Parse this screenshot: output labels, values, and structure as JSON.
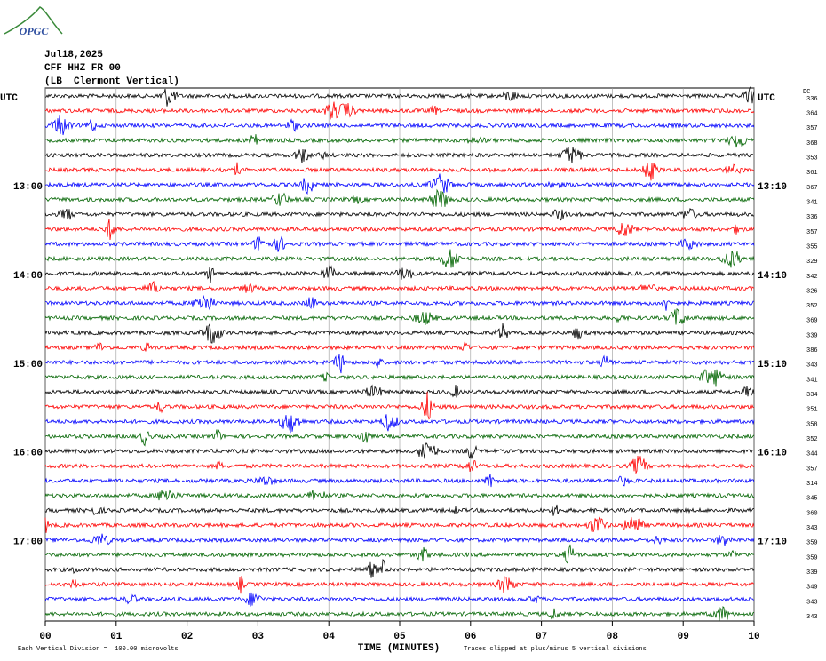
{
  "header": {
    "logo": "OPGC",
    "date": "Jul18,2025",
    "station": "CFF HHZ FR 00",
    "location": "(LB  Clermont Vertical)",
    "dc_heading": "DC"
  },
  "chart_data": {
    "type": "helicorder",
    "xlabel": "TIME (MINUTES)",
    "xlim": [
      0,
      10
    ],
    "xticks": [
      {
        "value": 0,
        "label": "00"
      },
      {
        "value": 1,
        "label": "01"
      },
      {
        "value": 2,
        "label": "02"
      },
      {
        "value": 3,
        "label": "03"
      },
      {
        "value": 4,
        "label": "04"
      },
      {
        "value": 5,
        "label": "05"
      },
      {
        "value": 6,
        "label": "06"
      },
      {
        "value": 7,
        "label": "07"
      },
      {
        "value": 8,
        "label": "08"
      },
      {
        "value": 9,
        "label": "09"
      },
      {
        "value": 10,
        "label": "10"
      }
    ],
    "grid": true,
    "colors": [
      "#000000",
      "#ff0000",
      "#0000ff",
      "#006400"
    ],
    "rows": [
      {
        "left": "UTC",
        "right": "UTC",
        "dc": 336
      },
      {
        "left": null,
        "right": null,
        "dc": 364
      },
      {
        "left": null,
        "right": null,
        "dc": 357
      },
      {
        "left": null,
        "right": null,
        "dc": 368
      },
      {
        "left": null,
        "right": null,
        "dc": 353
      },
      {
        "left": null,
        "right": null,
        "dc": 361
      },
      {
        "left": "13:00",
        "right": "13:10",
        "dc": 367
      },
      {
        "left": null,
        "right": null,
        "dc": 341
      },
      {
        "left": null,
        "right": null,
        "dc": 336
      },
      {
        "left": null,
        "right": null,
        "dc": 357
      },
      {
        "left": null,
        "right": null,
        "dc": 355
      },
      {
        "left": null,
        "right": null,
        "dc": 329
      },
      {
        "left": "14:00",
        "right": "14:10",
        "dc": 342
      },
      {
        "left": null,
        "right": null,
        "dc": 326
      },
      {
        "left": null,
        "right": null,
        "dc": 352
      },
      {
        "left": null,
        "right": null,
        "dc": 369
      },
      {
        "left": null,
        "right": null,
        "dc": 339
      },
      {
        "left": null,
        "right": null,
        "dc": 386
      },
      {
        "left": "15:00",
        "right": "15:10",
        "dc": 343
      },
      {
        "left": null,
        "right": null,
        "dc": 341
      },
      {
        "left": null,
        "right": null,
        "dc": 334
      },
      {
        "left": null,
        "right": null,
        "dc": 351
      },
      {
        "left": null,
        "right": null,
        "dc": 358
      },
      {
        "left": null,
        "right": null,
        "dc": 352
      },
      {
        "left": "16:00",
        "right": "16:10",
        "dc": 344
      },
      {
        "left": null,
        "right": null,
        "dc": 357
      },
      {
        "left": null,
        "right": null,
        "dc": 314
      },
      {
        "left": null,
        "right": null,
        "dc": 345
      },
      {
        "left": null,
        "right": null,
        "dc": 360
      },
      {
        "left": null,
        "right": null,
        "dc": 343
      },
      {
        "left": "17:00",
        "right": "17:10",
        "dc": 359
      },
      {
        "left": null,
        "right": null,
        "dc": 359
      },
      {
        "left": null,
        "right": null,
        "dc": 339
      },
      {
        "left": null,
        "right": null,
        "dc": 349
      },
      {
        "left": null,
        "right": null,
        "dc": 343
      },
      {
        "left": null,
        "right": null,
        "dc": 343
      }
    ],
    "scale_note": "Each Vertical Division =  100.00 microvolts",
    "clip_note": "Traces clipped at plus/minus 5 vertical divisions"
  }
}
